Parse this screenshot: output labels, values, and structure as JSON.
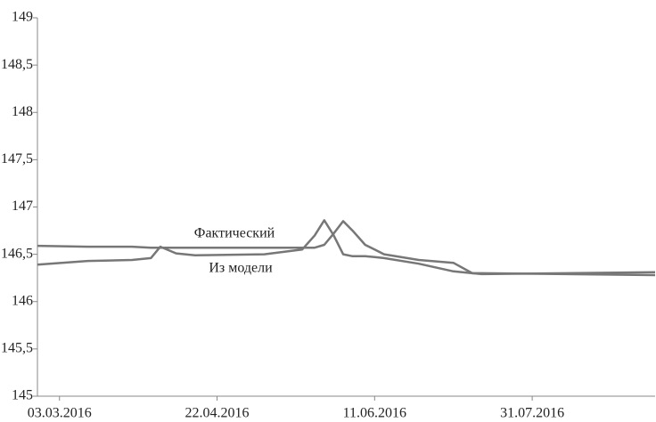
{
  "chart_data": {
    "type": "line",
    "x": [
      "2016-02-25",
      "2016-03-12",
      "2016-03-26",
      "2016-04-01",
      "2016-04-04",
      "2016-04-09",
      "2016-04-15",
      "2016-05-07",
      "2016-05-19",
      "2016-05-23",
      "2016-05-26",
      "2016-05-29",
      "2016-06-01",
      "2016-06-04",
      "2016-06-08",
      "2016-06-11",
      "2016-06-14",
      "2016-06-25",
      "2016-07-06",
      "2016-07-12",
      "2016-07-15",
      "2016-09-08"
    ],
    "series": [
      {
        "name": "Фактический",
        "color": "#777777",
        "values": [
          146.59,
          146.58,
          146.58,
          146.57,
          146.57,
          146.57,
          146.57,
          146.57,
          146.57,
          146.57,
          146.6,
          146.72,
          146.85,
          146.75,
          146.6,
          146.55,
          146.5,
          146.44,
          146.41,
          146.3,
          146.29,
          146.31
        ]
      },
      {
        "name": "Из модели",
        "color": "#777777",
        "values": [
          146.39,
          146.43,
          146.44,
          146.46,
          146.58,
          146.51,
          146.49,
          146.5,
          146.55,
          146.7,
          146.86,
          146.7,
          146.5,
          146.48,
          146.48,
          146.47,
          146.46,
          146.4,
          146.32,
          146.3,
          146.3,
          146.28
        ]
      }
    ],
    "xlim": [
      "2016-02-25",
      "2016-09-08"
    ],
    "xticks": [
      {
        "value": "2016-03-03",
        "label": "03.03.2016"
      },
      {
        "value": "2016-04-22",
        "label": "22.04.2016"
      },
      {
        "value": "2016-06-11",
        "label": "11.06.2016"
      },
      {
        "value": "2016-07-31",
        "label": "31.07.2016"
      }
    ],
    "ylim": [
      145,
      149
    ],
    "yticks": [
      145,
      {
        "value": 145.5,
        "label": "145,5"
      },
      146,
      {
        "value": 146.5,
        "label": "146,5"
      },
      147,
      {
        "value": 147.5,
        "label": "147,5"
      },
      148,
      {
        "value": 148.5,
        "label": "148,5"
      },
      149
    ],
    "grid": false
  }
}
